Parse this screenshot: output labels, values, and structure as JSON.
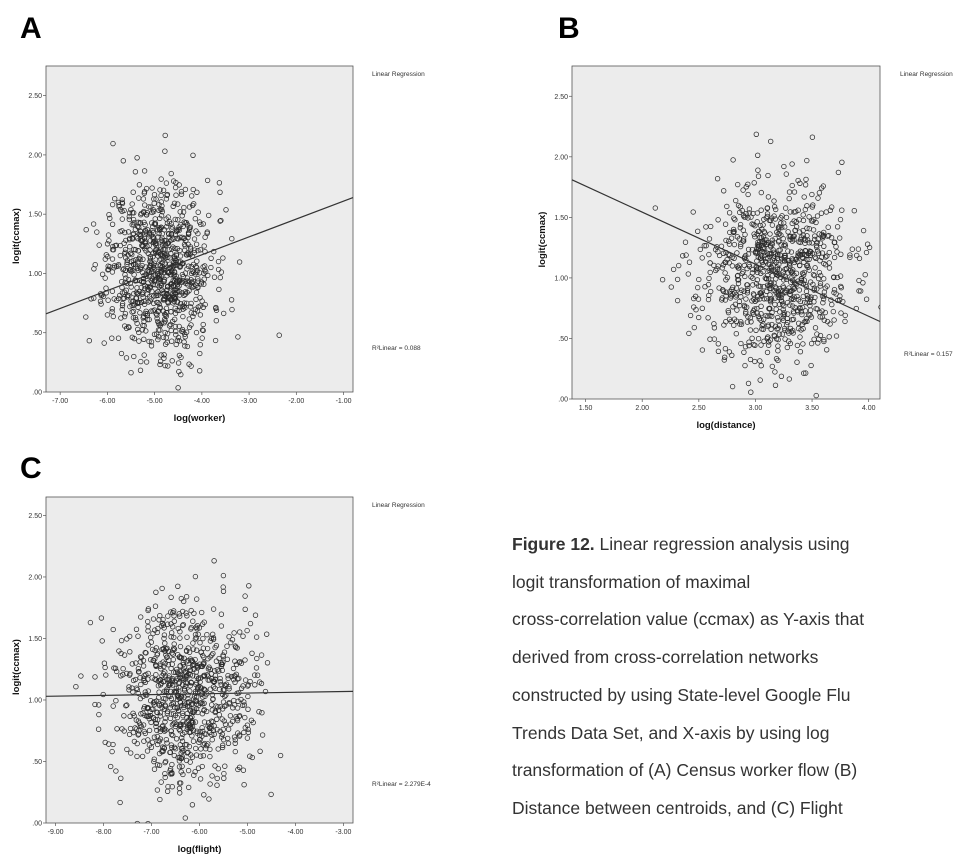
{
  "panels": [
    {
      "letter": "A",
      "legend_text": "Linear Regression",
      "r2_text": "R²Linear = 0.088"
    },
    {
      "letter": "B",
      "legend_text": "Linear Regression",
      "r2_text": "R²Linear = 0.157"
    },
    {
      "letter": "C",
      "legend_text": "Linear Regression",
      "r2_text": "R²Linear = 2.279E-4"
    }
  ],
  "caption": {
    "label": "Figure 12.",
    "lines": [
      " Linear regression analysis using",
      "logit transformation of maximal",
      "cross-correlation value (ccmax) as Y-axis that",
      "derived from cross-correlation networks",
      "constructed by using State-level Google Flu",
      "Trends Data Set, and X-axis by using log",
      "transformation of (A) Census worker flow (B)",
      "Distance between centroids, and (C) Flight"
    ]
  },
  "colors": {
    "plot_bg": "#ececec",
    "marker": "#2b2b2b",
    "fit_line": "#333333"
  },
  "chart_data": [
    {
      "type": "scatter",
      "title": "",
      "xlabel": "log(worker)",
      "ylabel": "logit(ccmax)",
      "xlim": [
        -7.3,
        -0.8
      ],
      "ylim": [
        0.0,
        2.75
      ],
      "xticks": [
        "-7.00",
        "-6.00",
        "-5.00",
        "-4.00",
        "-3.00",
        "-2.00",
        "-1.00"
      ],
      "yticks": [
        ".00",
        ".50",
        "1.00",
        "1.50",
        "2.00",
        "2.50"
      ],
      "fit_line": {
        "x": [
          -7.3,
          -0.8
        ],
        "y": [
          0.66,
          1.64
        ]
      },
      "point_cloud": {
        "count": 900,
        "x_center": -4.9,
        "x_spread": 0.55,
        "y_center": 1.05,
        "y_spread": 0.36,
        "seed": 11
      }
    },
    {
      "type": "scatter",
      "title": "",
      "xlabel": "log(distance)",
      "ylabel": "logit(ccmax)",
      "xlim": [
        1.38,
        4.1
      ],
      "ylim": [
        0.0,
        2.75
      ],
      "xticks": [
        "1.50",
        "2.00",
        "2.50",
        "3.00",
        "3.50",
        "4.00"
      ],
      "yticks": [
        ".00",
        ".50",
        "1.00",
        "1.50",
        "2.00",
        "2.50"
      ],
      "fit_line": {
        "x": [
          1.38,
          4.1
        ],
        "y": [
          1.81,
          0.64
        ]
      },
      "point_cloud": {
        "count": 900,
        "x_center": 3.15,
        "x_spread": 0.33,
        "y_center": 1.02,
        "y_spread": 0.36,
        "seed": 23
      }
    },
    {
      "type": "scatter",
      "title": "",
      "xlabel": "log(flight)",
      "ylabel": "logit(ccmax)",
      "xlim": [
        -9.2,
        -2.8
      ],
      "ylim": [
        0.0,
        2.65
      ],
      "xticks": [
        "-9.00",
        "-8.00",
        "-7.00",
        "-6.00",
        "-5.00",
        "-4.00",
        "-3.00"
      ],
      "yticks": [
        ".00",
        ".50",
        "1.00",
        "1.50",
        "2.00",
        "2.50"
      ],
      "fit_line": {
        "x": [
          -9.2,
          -2.8
        ],
        "y": [
          1.03,
          1.07
        ]
      },
      "point_cloud": {
        "count": 900,
        "x_center": -6.3,
        "x_spread": 0.7,
        "y_center": 1.05,
        "y_spread": 0.36,
        "seed": 37
      }
    }
  ]
}
